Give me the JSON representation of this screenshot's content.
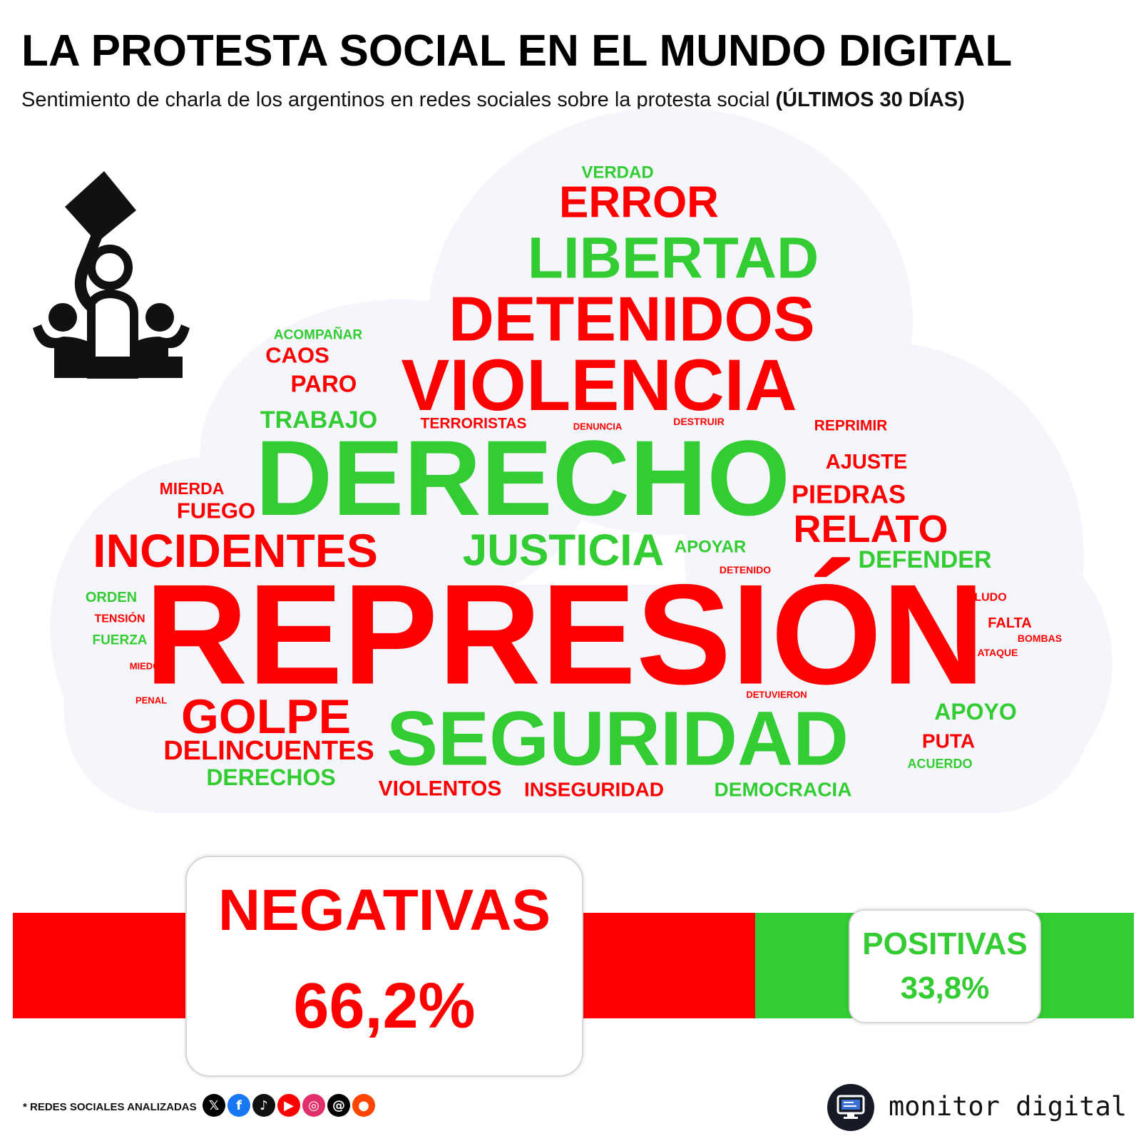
{
  "header": {
    "title": "LA PROTESTA SOCIAL EN EL MUNDO DIGITAL",
    "subtitle": "Sentimiento de charla de los argentinos en redes sociales sobre la protesta social",
    "subtitle_bold": "(ÚLTIMOS 30 DÍAS)"
  },
  "colors": {
    "negative": "#ff0000",
    "positive": "#33cc33",
    "cloud": "#f4f6fb"
  },
  "word_cloud": [
    {
      "text": "VERDAD",
      "sentiment": "positive",
      "size": 24
    },
    {
      "text": "ERROR",
      "sentiment": "negative",
      "size": 62
    },
    {
      "text": "LIBERTAD",
      "sentiment": "positive",
      "size": 82
    },
    {
      "text": "DETENIDOS",
      "sentiment": "negative",
      "size": 88
    },
    {
      "text": "ACOMPAÑAR",
      "sentiment": "positive",
      "size": 19
    },
    {
      "text": "CAOS",
      "sentiment": "negative",
      "size": 31
    },
    {
      "text": "PARO",
      "sentiment": "negative",
      "size": 33
    },
    {
      "text": "VIOLENCIA",
      "sentiment": "negative",
      "size": 102
    },
    {
      "text": "TRABAJO",
      "sentiment": "positive",
      "size": 34
    },
    {
      "text": "TERRORISTAS",
      "sentiment": "negative",
      "size": 21
    },
    {
      "text": "DENUNCIA",
      "sentiment": "negative",
      "size": 13
    },
    {
      "text": "DESTRUIR",
      "sentiment": "negative",
      "size": 14
    },
    {
      "text": "REPRIMIR",
      "sentiment": "negative",
      "size": 21
    },
    {
      "text": "DERECHO",
      "sentiment": "positive",
      "size": 150
    },
    {
      "text": "AJUSTE",
      "sentiment": "negative",
      "size": 29
    },
    {
      "text": "MIERDA",
      "sentiment": "negative",
      "size": 23
    },
    {
      "text": "PIEDRAS",
      "sentiment": "negative",
      "size": 36
    },
    {
      "text": "FUEGO",
      "sentiment": "negative",
      "size": 31
    },
    {
      "text": "RELATO",
      "sentiment": "negative",
      "size": 54
    },
    {
      "text": "INCIDENTES",
      "sentiment": "negative",
      "size": 66
    },
    {
      "text": "JUSTICIA",
      "sentiment": "positive",
      "size": 62
    },
    {
      "text": "APOYAR",
      "sentiment": "positive",
      "size": 24
    },
    {
      "text": "DEFENDER",
      "sentiment": "positive",
      "size": 34
    },
    {
      "text": "DETENIDO",
      "sentiment": "negative",
      "size": 14
    },
    {
      "text": "ORDEN",
      "sentiment": "positive",
      "size": 20
    },
    {
      "text": "BOLUDO",
      "sentiment": "negative",
      "size": 16
    },
    {
      "text": "TENSIÓN",
      "sentiment": "negative",
      "size": 16
    },
    {
      "text": "REPRESIÓN",
      "sentiment": "negative",
      "size": 200
    },
    {
      "text": "FALTA",
      "sentiment": "negative",
      "size": 20
    },
    {
      "text": "FUERZA",
      "sentiment": "positive",
      "size": 19
    },
    {
      "text": "BOMBAS",
      "sentiment": "negative",
      "size": 14
    },
    {
      "text": "ATAQUE",
      "sentiment": "negative",
      "size": 14
    },
    {
      "text": "MIEDO",
      "sentiment": "negative",
      "size": 13
    },
    {
      "text": "PENAL",
      "sentiment": "negative",
      "size": 13
    },
    {
      "text": "DETUVIERON",
      "sentiment": "negative",
      "size": 13
    },
    {
      "text": "GOLPE",
      "sentiment": "negative",
      "size": 68
    },
    {
      "text": "APOYO",
      "sentiment": "positive",
      "size": 32
    },
    {
      "text": "SEGURIDAD",
      "sentiment": "positive",
      "size": 108
    },
    {
      "text": "DELINCUENTES",
      "sentiment": "negative",
      "size": 38
    },
    {
      "text": "PUTA",
      "sentiment": "negative",
      "size": 28
    },
    {
      "text": "ACUERDO",
      "sentiment": "positive",
      "size": 18
    },
    {
      "text": "DERECHOS",
      "sentiment": "positive",
      "size": 32
    },
    {
      "text": "VIOLENTOS",
      "sentiment": "negative",
      "size": 30
    },
    {
      "text": "INSEGURIDAD",
      "sentiment": "negative",
      "size": 28
    },
    {
      "text": "DEMOCRACIA",
      "sentiment": "positive",
      "size": 28
    }
  ],
  "sentiment": {
    "negative_label": "NEGATIVAS",
    "negative_value": "66,2%",
    "negative_share": 66.2,
    "positive_label": "POSITIVAS",
    "positive_value": "33,8%",
    "positive_share": 33.8
  },
  "footer": {
    "note": "* REDES SOCIALES ANALIZADAS",
    "networks": [
      {
        "icon": "x-icon",
        "glyph": "𝕏",
        "color": "#000000"
      },
      {
        "icon": "facebook-icon",
        "glyph": "f",
        "color": "#1877f2"
      },
      {
        "icon": "tiktok-icon",
        "glyph": "♪",
        "color": "#111111"
      },
      {
        "icon": "youtube-icon",
        "glyph": "▶",
        "color": "#ff0000"
      },
      {
        "icon": "instagram-icon",
        "glyph": "◎",
        "color": "#e1306c"
      },
      {
        "icon": "threads-icon",
        "glyph": "@",
        "color": "#000000"
      },
      {
        "icon": "reddit-icon",
        "glyph": "●",
        "color": "#ff4500"
      }
    ],
    "brand": "monitor digital"
  }
}
